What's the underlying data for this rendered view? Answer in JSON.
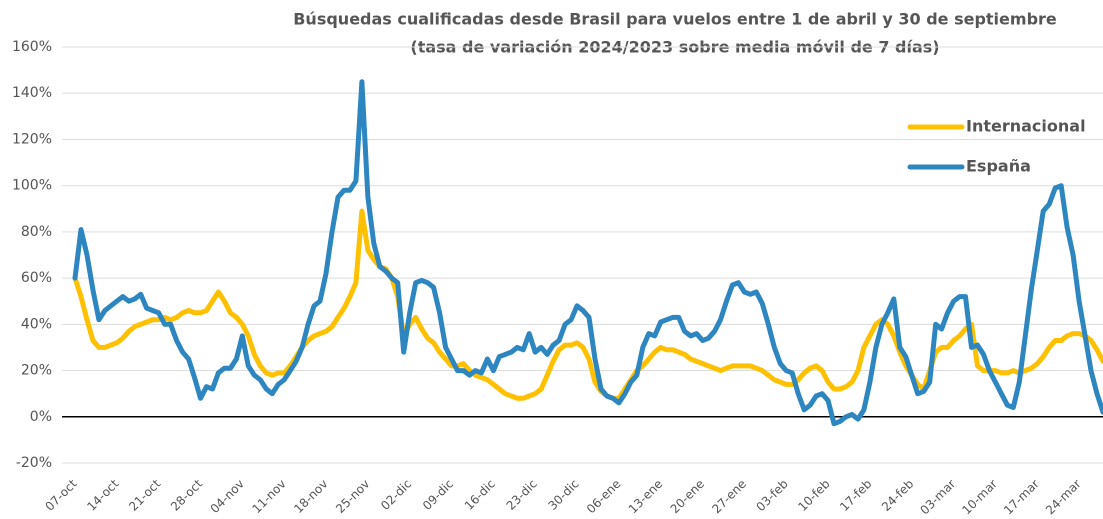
{
  "chart_data": {
    "type": "line",
    "title": "Búsquedas cualificadas desde Brasil para vuelos entre 1 de abril y 30 de septiembre",
    "subtitle": "(tasa de variación 2024/2023 sobre media móvil de 7 días)",
    "categories": [
      "07-oct",
      null,
      null,
      null,
      null,
      null,
      null,
      "14-oct",
      null,
      null,
      null,
      null,
      null,
      null,
      "21-oct",
      null,
      null,
      null,
      null,
      null,
      null,
      "28-oct",
      null,
      null,
      null,
      null,
      null,
      null,
      "04-nov",
      null,
      null,
      null,
      null,
      null,
      null,
      "11-nov",
      null,
      null,
      null,
      null,
      null,
      null,
      "18-nov",
      null,
      null,
      null,
      null,
      null,
      null,
      "25-nov",
      null,
      null,
      null,
      null,
      null,
      null,
      "02-dic",
      null,
      null,
      null,
      null,
      null,
      null,
      "09-dic",
      null,
      null,
      null,
      null,
      null,
      null,
      "16-dic",
      null,
      null,
      null,
      null,
      null,
      null,
      "23-dic",
      null,
      null,
      null,
      null,
      null,
      null,
      "30-dic",
      null,
      null,
      null,
      null,
      null,
      null,
      "06-ene",
      null,
      null,
      null,
      null,
      null,
      null,
      "13-ene",
      null,
      null,
      null,
      null,
      null,
      null,
      "20-ene",
      null,
      null,
      null,
      null,
      null,
      null,
      "27-ene",
      null,
      null,
      null,
      null,
      null,
      null,
      "03-feb",
      null,
      null,
      null,
      null,
      null,
      null,
      "10-feb",
      null,
      null,
      null,
      null,
      null,
      null,
      "17-feb",
      null,
      null,
      null,
      null,
      null,
      null,
      "24-feb",
      null,
      null,
      null,
      null,
      null,
      null,
      "03-mar",
      null,
      null,
      null,
      null,
      null,
      null,
      "10-mar",
      null,
      null,
      null,
      null,
      null,
      null,
      "17-mar",
      null,
      null,
      null,
      null,
      null,
      null,
      "24-mar",
      null,
      null,
      null,
      null
    ],
    "series": [
      {
        "name": "Internacional",
        "color": "#ffc000",
        "values": [
          60,
          52,
          42,
          33,
          30,
          30,
          31,
          32,
          34,
          37,
          39,
          40,
          41,
          42,
          42,
          43,
          42,
          43,
          45,
          46,
          45,
          45,
          46,
          50,
          54,
          50,
          45,
          43,
          40,
          35,
          27,
          22,
          19,
          18,
          19,
          19,
          22,
          26,
          30,
          33,
          35,
          36,
          37,
          39,
          43,
          47,
          52,
          58,
          89,
          72,
          68,
          65,
          64,
          60,
          52,
          35,
          40,
          43,
          38,
          34,
          32,
          28,
          25,
          22,
          22,
          23,
          20,
          18,
          17,
          16,
          14,
          12,
          10,
          9,
          8,
          8,
          9,
          10,
          12,
          18,
          24,
          29,
          31,
          31,
          32,
          30,
          25,
          15,
          11,
          9,
          8,
          8,
          12,
          16,
          20,
          22,
          25,
          28,
          30,
          29,
          29,
          28,
          27,
          25,
          24,
          23,
          22,
          21,
          20,
          21,
          22,
          22,
          22,
          22,
          21,
          20,
          18,
          16,
          15,
          14,
          14,
          16,
          19,
          21,
          22,
          20,
          15,
          12,
          12,
          13,
          15,
          20,
          30,
          35,
          40,
          42,
          40,
          35,
          28,
          22,
          18,
          14,
          12,
          20,
          28,
          30,
          30,
          33,
          35,
          38,
          40,
          22,
          20,
          20,
          20,
          19,
          19,
          20,
          19,
          20,
          21,
          23,
          26,
          30,
          33,
          33,
          35,
          36,
          36,
          35,
          33,
          29,
          24
        ]
      },
      {
        "name": "España",
        "color": "#2e86c1",
        "values": [
          60,
          81,
          70,
          55,
          42,
          46,
          48,
          50,
          52,
          50,
          51,
          53,
          47,
          46,
          45,
          40,
          40,
          33,
          28,
          25,
          17,
          8,
          13,
          12,
          19,
          21,
          21,
          25,
          35,
          22,
          18,
          16,
          12,
          10,
          14,
          16,
          20,
          24,
          30,
          40,
          48,
          50,
          62,
          80,
          95,
          98,
          98,
          102,
          145,
          95,
          75,
          65,
          63,
          60,
          58,
          28,
          45,
          58,
          59,
          58,
          56,
          45,
          30,
          25,
          20,
          20,
          18,
          20,
          19,
          25,
          20,
          26,
          27,
          28,
          30,
          29,
          36,
          28,
          30,
          27,
          31,
          33,
          40,
          42,
          48,
          46,
          43,
          25,
          12,
          9,
          8,
          6,
          10,
          15,
          18,
          30,
          36,
          35,
          41,
          42,
          43,
          43,
          37,
          35,
          36,
          33,
          34,
          37,
          42,
          50,
          57,
          58,
          54,
          53,
          54,
          49,
          40,
          30,
          23,
          20,
          19,
          10,
          3,
          5,
          9,
          10,
          7,
          -3,
          -2,
          0,
          1,
          -1,
          3,
          15,
          30,
          40,
          45,
          51,
          30,
          26,
          18,
          10,
          11,
          15,
          40,
          38,
          45,
          50,
          52,
          52,
          30,
          31,
          27,
          20,
          15,
          10,
          5,
          4,
          15,
          35,
          55,
          72,
          89,
          92,
          99,
          100,
          82,
          70,
          50,
          35,
          20,
          10,
          2
        ]
      }
    ],
    "ylim": [
      -20,
      160
    ],
    "yticks": [
      {
        "value": -20,
        "label": "-20%"
      },
      {
        "value": 0,
        "label": "0%"
      },
      {
        "value": 20,
        "label": "20%"
      },
      {
        "value": 40,
        "label": "40%"
      },
      {
        "value": 60,
        "label": "60%"
      },
      {
        "value": 80,
        "label": "80%"
      },
      {
        "value": 100,
        "label": "100%"
      },
      {
        "value": 120,
        "label": "120%"
      },
      {
        "value": 140,
        "label": "140%"
      },
      {
        "value": 160,
        "label": "160%"
      }
    ],
    "grid": true,
    "legend": "right"
  }
}
